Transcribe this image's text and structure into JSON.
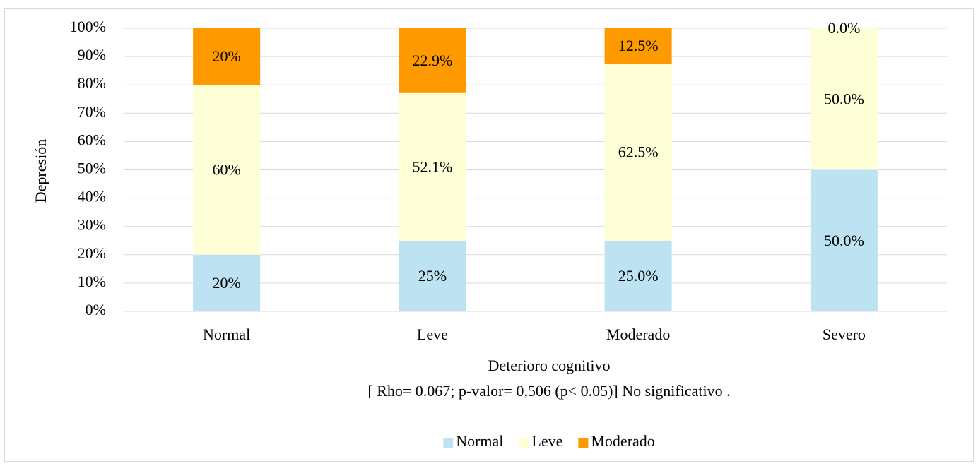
{
  "chart_data": {
    "type": "stacked_bar",
    "y_label": "Depresión",
    "x_label": "Deterioro cognitivo",
    "annotation": "[ Rho= 0.067; p-valor= 0,506 (p< 0.05)] No significativo .",
    "categories": [
      "Normal",
      "Leve",
      "Moderado",
      "Severo"
    ],
    "series": [
      {
        "name": "Normal",
        "color": "#bde3f3",
        "values": [
          20,
          25,
          25,
          50
        ],
        "value_labels": [
          "20%",
          "25%",
          "25.0%",
          "50.0%"
        ]
      },
      {
        "name": "Leve",
        "color": "#fefed7",
        "values": [
          60,
          52.1,
          62.5,
          50
        ],
        "value_labels": [
          "60%",
          "52.1%",
          "62.5%",
          "50.0%"
        ]
      },
      {
        "name": "Moderado",
        "color": "#ff9900",
        "values": [
          20,
          22.9,
          12.5,
          0
        ],
        "value_labels": [
          "20%",
          "22.9%",
          "12.5%",
          "0.0%"
        ]
      }
    ],
    "ylim": [
      0,
      100
    ],
    "yticks": [
      {
        "value": 0,
        "label": "0%"
      },
      {
        "value": 10,
        "label": "10%"
      },
      {
        "value": 20,
        "label": "20%"
      },
      {
        "value": 30,
        "label": "30%"
      },
      {
        "value": 40,
        "label": "40%"
      },
      {
        "value": 50,
        "label": "50%"
      },
      {
        "value": 60,
        "label": "60%"
      },
      {
        "value": 70,
        "label": "70%"
      },
      {
        "value": 80,
        "label": "80%"
      },
      {
        "value": 90,
        "label": "90%"
      },
      {
        "value": 100,
        "label": "100%"
      }
    ],
    "grid": true,
    "legend": "bottom"
  }
}
